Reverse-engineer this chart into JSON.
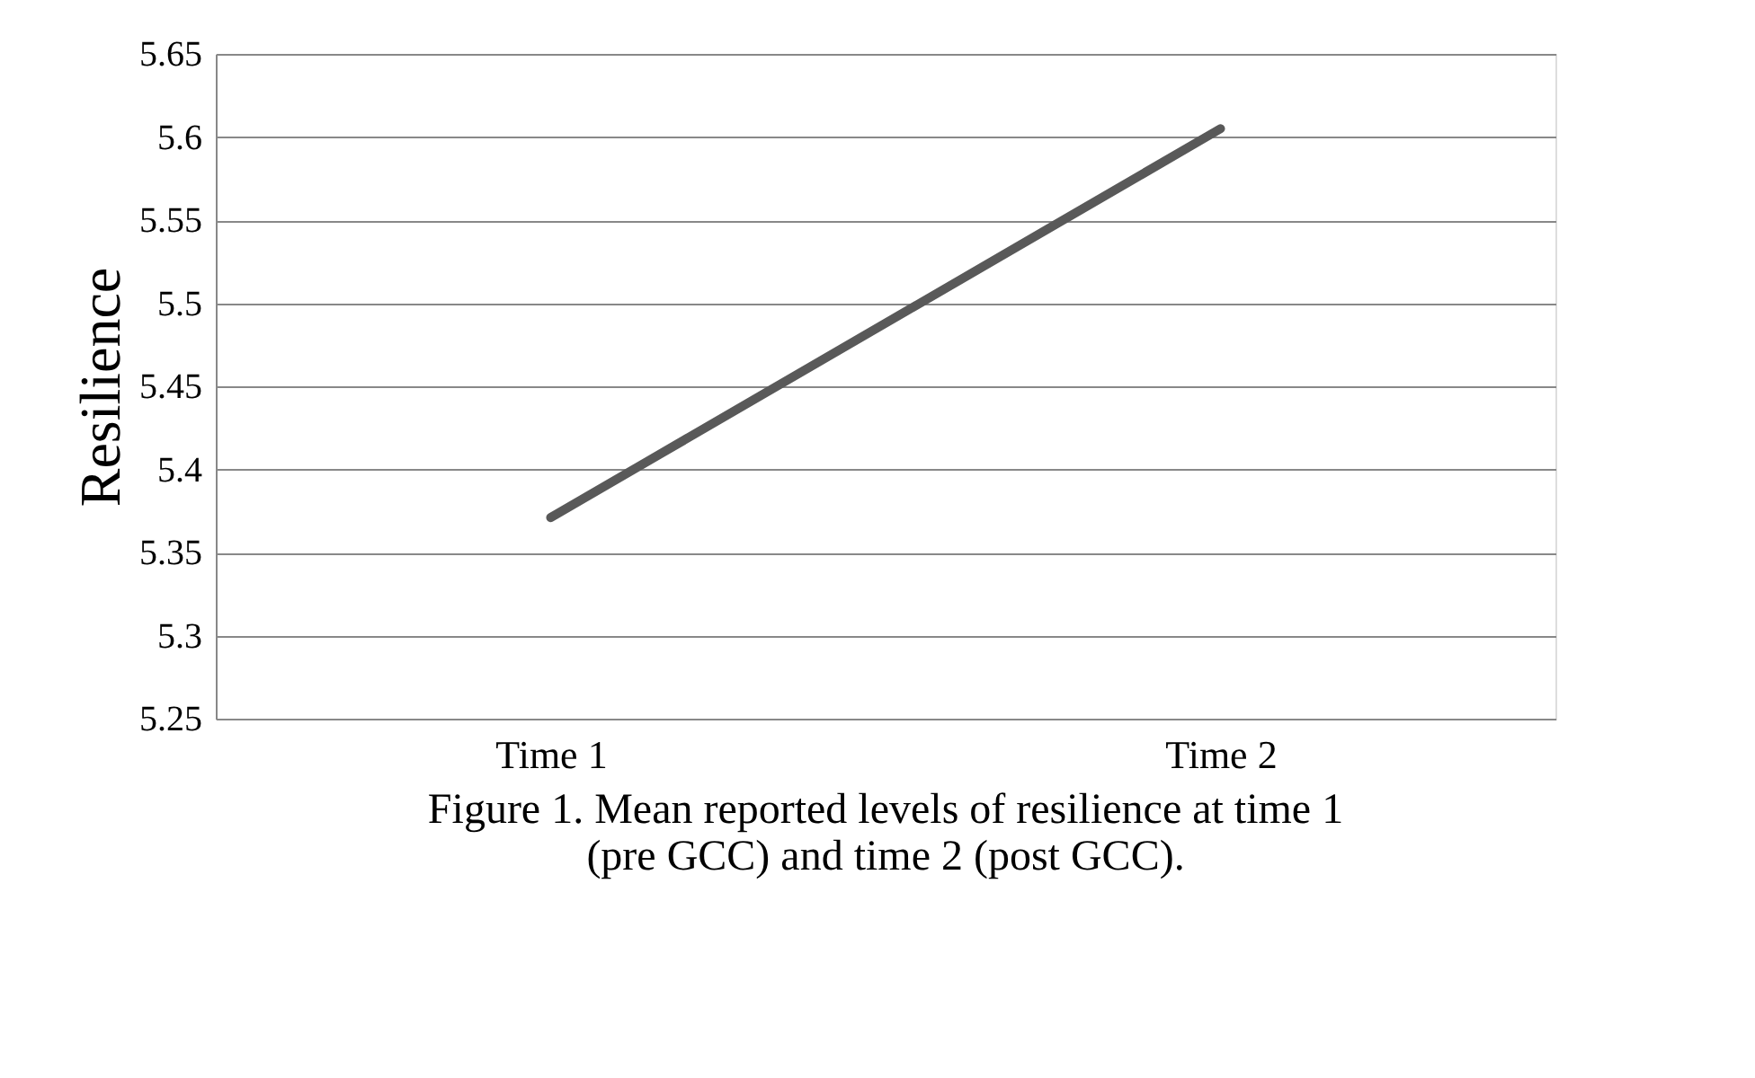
{
  "chart_data": {
    "type": "line",
    "ylabel": "Resilience",
    "categories": [
      "Time 1",
      "Time 2"
    ],
    "series": [
      {
        "color": "#595959",
        "values": [
          5.371,
          5.605
        ]
      }
    ],
    "ylim": [
      5.25,
      5.65
    ],
    "yticks": [
      5.25,
      5.3,
      5.35,
      5.4,
      5.45,
      5.5,
      5.55,
      5.6,
      5.65
    ],
    "grid": "y",
    "marker": "none",
    "line_style": "solid",
    "annotations": [
      "Figure 1. Mean reported levels of resilience at time 1 (pre GCC) and time 2 (post GCC)."
    ]
  }
}
